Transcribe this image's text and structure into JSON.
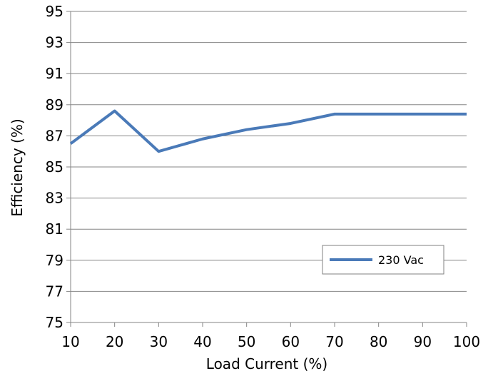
{
  "chart_data": {
    "type": "line",
    "title": "",
    "xlabel": "Load Current  (%)",
    "ylabel": "Efficiency (%)",
    "x": [
      10,
      20,
      30,
      40,
      50,
      60,
      70,
      80,
      90,
      100
    ],
    "xlim": [
      10,
      100
    ],
    "ylim": [
      75,
      95
    ],
    "xticks": [
      "10",
      "20",
      "30",
      "40",
      "50",
      "60",
      "70",
      "80",
      "90",
      "100"
    ],
    "yticks": [
      "75",
      "77",
      "79",
      "81",
      "83",
      "85",
      "87",
      "89",
      "91",
      "93",
      "95"
    ],
    "grid": "horizontal",
    "legend_position": "bottom-right",
    "series": [
      {
        "name": "230 Vac",
        "color": "#4a7ab8",
        "values": [
          86.5,
          88.6,
          86.0,
          86.8,
          87.4,
          87.8,
          88.4,
          88.4,
          88.4,
          88.4
        ]
      }
    ]
  }
}
